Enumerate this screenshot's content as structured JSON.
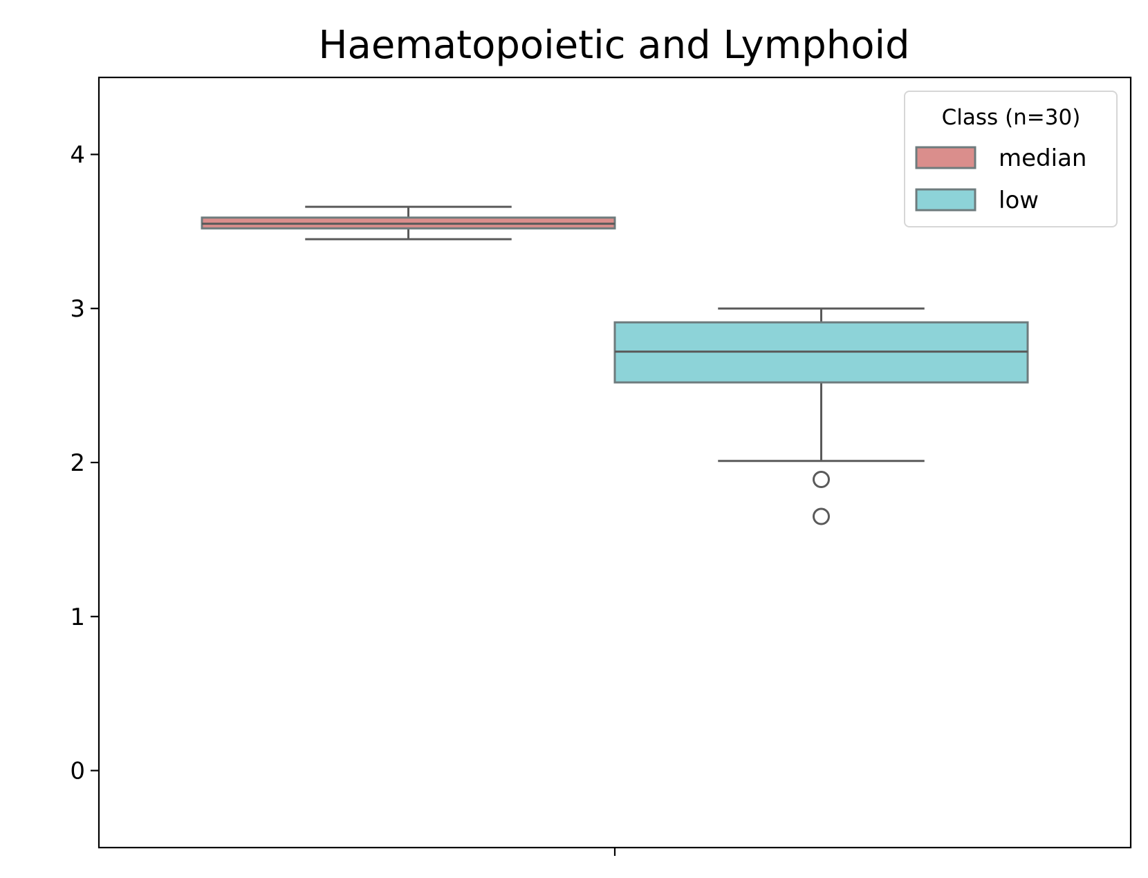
{
  "chart_data": {
    "type": "box",
    "title": "Haematopoietic and Lymphoid",
    "xlabel": "",
    "ylabel": "",
    "ylim": [
      -0.5,
      4.5
    ],
    "yticks": [
      0,
      1,
      2,
      3,
      4
    ],
    "ytick_labels": [
      "0",
      "1",
      "2",
      "3",
      "4"
    ],
    "x_tick_labels": [
      ""
    ],
    "grid": false,
    "legend": {
      "title": "Class (n=30)",
      "position": "top-right",
      "entries": [
        "median",
        "low"
      ]
    },
    "series": [
      {
        "name": "median",
        "color": "#da8e8c",
        "stats": {
          "whisker_low": 3.45,
          "q1": 3.52,
          "median": 3.55,
          "q3": 3.59,
          "whisker_high": 3.66
        },
        "outliers": []
      },
      {
        "name": "low",
        "color": "#8dd3d8",
        "stats": {
          "whisker_low": 2.01,
          "q1": 2.52,
          "median": 2.72,
          "q3": 2.91,
          "whisker_high": 3.0
        },
        "outliers": [
          1.89,
          1.65
        ]
      }
    ]
  }
}
